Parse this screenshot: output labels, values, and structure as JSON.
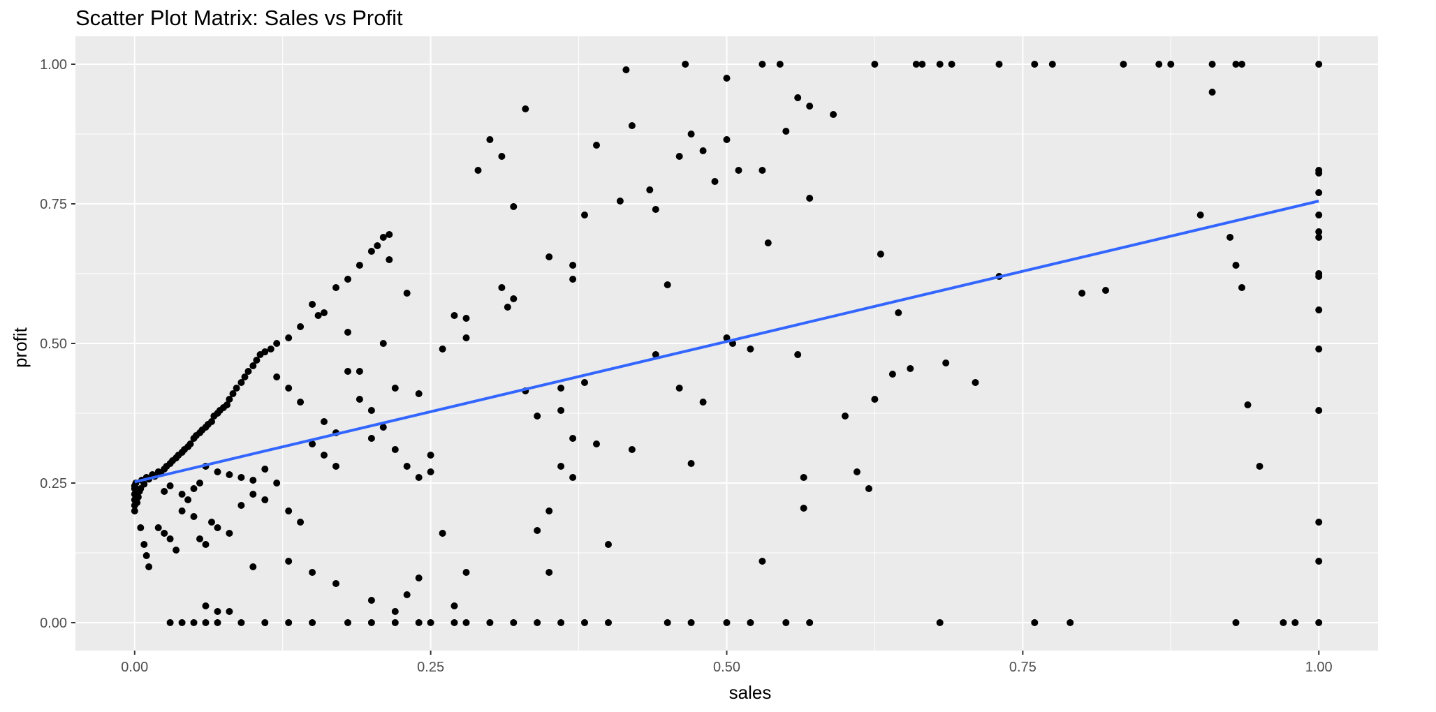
{
  "chart_data": {
    "type": "scatter",
    "title": "Scatter Plot Matrix: Sales vs Profit",
    "xlabel": "sales",
    "ylabel": "profit",
    "xlim": [
      -0.05,
      1.05
    ],
    "ylim": [
      -0.05,
      1.05
    ],
    "x_ticks": [
      0.0,
      0.25,
      0.5,
      0.75,
      1.0
    ],
    "x_tick_labels": [
      "0.00",
      "0.25",
      "0.50",
      "0.75",
      "1.00"
    ],
    "y_ticks": [
      0.0,
      0.25,
      0.5,
      0.75,
      1.0
    ],
    "y_tick_labels": [
      "0.00",
      "0.25",
      "0.50",
      "0.75",
      "1.00"
    ],
    "grid": true,
    "background_color": "#ebebeb",
    "point_color": "#000000",
    "trend_line": {
      "type": "linear",
      "color": "#3366ff",
      "x": [
        0.0,
        1.0
      ],
      "y": [
        0.252,
        0.755
      ]
    },
    "points": [
      [
        0.0,
        0.2
      ],
      [
        0.0,
        0.21
      ],
      [
        0.0,
        0.22
      ],
      [
        0.0,
        0.23
      ],
      [
        0.0,
        0.24
      ],
      [
        0.0,
        0.245
      ],
      [
        0.001,
        0.25
      ],
      [
        0.002,
        0.215
      ],
      [
        0.003,
        0.225
      ],
      [
        0.004,
        0.235
      ],
      [
        0.005,
        0.24
      ],
      [
        0.006,
        0.255
      ],
      [
        0.008,
        0.248
      ],
      [
        0.01,
        0.26
      ],
      [
        0.012,
        0.257
      ],
      [
        0.015,
        0.265
      ],
      [
        0.017,
        0.262
      ],
      [
        0.02,
        0.27
      ],
      [
        0.022,
        0.268
      ],
      [
        0.025,
        0.275
      ],
      [
        0.027,
        0.28
      ],
      [
        0.03,
        0.285
      ],
      [
        0.032,
        0.29
      ],
      [
        0.035,
        0.295
      ],
      [
        0.037,
        0.3
      ],
      [
        0.04,
        0.305
      ],
      [
        0.042,
        0.31
      ],
      [
        0.045,
        0.315
      ],
      [
        0.047,
        0.32
      ],
      [
        0.05,
        0.33
      ],
      [
        0.052,
        0.335
      ],
      [
        0.055,
        0.34
      ],
      [
        0.057,
        0.345
      ],
      [
        0.06,
        0.35
      ],
      [
        0.062,
        0.355
      ],
      [
        0.065,
        0.36
      ],
      [
        0.067,
        0.37
      ],
      [
        0.07,
        0.375
      ],
      [
        0.072,
        0.38
      ],
      [
        0.075,
        0.385
      ],
      [
        0.078,
        0.39
      ],
      [
        0.08,
        0.4
      ],
      [
        0.083,
        0.41
      ],
      [
        0.086,
        0.42
      ],
      [
        0.09,
        0.43
      ],
      [
        0.093,
        0.44
      ],
      [
        0.096,
        0.45
      ],
      [
        0.1,
        0.46
      ],
      [
        0.103,
        0.47
      ],
      [
        0.106,
        0.48
      ],
      [
        0.11,
        0.485
      ],
      [
        0.115,
        0.49
      ],
      [
        0.12,
        0.5
      ],
      [
        0.13,
        0.51
      ],
      [
        0.14,
        0.53
      ],
      [
        0.15,
        0.57
      ],
      [
        0.155,
        0.55
      ],
      [
        0.16,
        0.555
      ],
      [
        0.17,
        0.6
      ],
      [
        0.18,
        0.615
      ],
      [
        0.19,
        0.64
      ],
      [
        0.2,
        0.665
      ],
      [
        0.205,
        0.675
      ],
      [
        0.21,
        0.69
      ],
      [
        0.215,
        0.695
      ],
      [
        0.215,
        0.65
      ],
      [
        0.005,
        0.17
      ],
      [
        0.008,
        0.14
      ],
      [
        0.01,
        0.12
      ],
      [
        0.012,
        0.1
      ],
      [
        0.02,
        0.17
      ],
      [
        0.025,
        0.16
      ],
      [
        0.03,
        0.15
      ],
      [
        0.035,
        0.13
      ],
      [
        0.04,
        0.2
      ],
      [
        0.05,
        0.19
      ],
      [
        0.055,
        0.15
      ],
      [
        0.06,
        0.14
      ],
      [
        0.065,
        0.18
      ],
      [
        0.07,
        0.17
      ],
      [
        0.08,
        0.16
      ],
      [
        0.09,
        0.21
      ],
      [
        0.1,
        0.23
      ],
      [
        0.11,
        0.22
      ],
      [
        0.12,
        0.25
      ],
      [
        0.13,
        0.2
      ],
      [
        0.14,
        0.18
      ],
      [
        0.15,
        0.32
      ],
      [
        0.16,
        0.3
      ],
      [
        0.17,
        0.28
      ],
      [
        0.18,
        0.52
      ],
      [
        0.19,
        0.45
      ],
      [
        0.2,
        0.33
      ],
      [
        0.21,
        0.5
      ],
      [
        0.22,
        0.42
      ],
      [
        0.23,
        0.59
      ],
      [
        0.24,
        0.41
      ],
      [
        0.25,
        0.3
      ],
      [
        0.25,
        0.27
      ],
      [
        0.26,
        0.49
      ],
      [
        0.27,
        0.55
      ],
      [
        0.28,
        0.545
      ],
      [
        0.28,
        0.51
      ],
      [
        0.29,
        0.81
      ],
      [
        0.3,
        0.865
      ],
      [
        0.31,
        0.835
      ],
      [
        0.32,
        0.745
      ],
      [
        0.33,
        0.92
      ],
      [
        0.33,
        0.415
      ],
      [
        0.34,
        0.37
      ],
      [
        0.35,
        0.2
      ],
      [
        0.36,
        0.38
      ],
      [
        0.37,
        0.64
      ],
      [
        0.38,
        0.73
      ],
      [
        0.39,
        0.855
      ],
      [
        0.4,
        0.14
      ],
      [
        0.41,
        0.755
      ],
      [
        0.415,
        0.99
      ],
      [
        0.42,
        0.89
      ],
      [
        0.435,
        0.775
      ],
      [
        0.44,
        0.74
      ],
      [
        0.45,
        0.605
      ],
      [
        0.46,
        0.835
      ],
      [
        0.47,
        0.875
      ],
      [
        0.48,
        0.845
      ],
      [
        0.49,
        0.79
      ],
      [
        0.5,
        0.865
      ],
      [
        0.5,
        0.975
      ],
      [
        0.51,
        0.81
      ],
      [
        0.52,
        0.49
      ],
      [
        0.53,
        0.81
      ],
      [
        0.535,
        0.68
      ],
      [
        0.55,
        0.88
      ],
      [
        0.56,
        0.94
      ],
      [
        0.57,
        0.925
      ],
      [
        0.57,
        0.76
      ],
      [
        0.59,
        0.91
      ],
      [
        0.6,
        0.37
      ],
      [
        0.61,
        0.27
      ],
      [
        0.62,
        0.24
      ],
      [
        0.625,
        0.4
      ],
      [
        0.63,
        0.66
      ],
      [
        0.64,
        0.445
      ],
      [
        0.645,
        0.555
      ],
      [
        0.655,
        0.455
      ],
      [
        0.685,
        0.465
      ],
      [
        0.71,
        0.43
      ],
      [
        0.73,
        0.62
      ],
      [
        0.8,
        0.59
      ],
      [
        0.82,
        0.595
      ],
      [
        0.9,
        0.73
      ],
      [
        0.91,
        0.95
      ],
      [
        0.925,
        0.69
      ],
      [
        0.93,
        0.64
      ],
      [
        0.935,
        0.6
      ],
      [
        0.94,
        0.39
      ],
      [
        0.95,
        0.28
      ],
      [
        1.0,
        0.81
      ],
      [
        1.0,
        0.805
      ],
      [
        1.0,
        0.77
      ],
      [
        1.0,
        0.73
      ],
      [
        1.0,
        0.7
      ],
      [
        1.0,
        0.69
      ],
      [
        1.0,
        0.625
      ],
      [
        1.0,
        0.62
      ],
      [
        1.0,
        0.56
      ],
      [
        1.0,
        0.49
      ],
      [
        1.0,
        0.38
      ],
      [
        1.0,
        0.18
      ],
      [
        1.0,
        0.11
      ],
      [
        1.0,
        0.0
      ],
      [
        1.0,
        1.0
      ],
      [
        0.465,
        1.0
      ],
      [
        0.53,
        1.0
      ],
      [
        0.545,
        1.0
      ],
      [
        0.625,
        1.0
      ],
      [
        0.66,
        1.0
      ],
      [
        0.665,
        1.0
      ],
      [
        0.68,
        1.0
      ],
      [
        0.69,
        1.0
      ],
      [
        0.73,
        1.0
      ],
      [
        0.76,
        1.0
      ],
      [
        0.775,
        1.0
      ],
      [
        0.835,
        1.0
      ],
      [
        0.865,
        1.0
      ],
      [
        0.875,
        1.0
      ],
      [
        0.91,
        1.0
      ],
      [
        0.93,
        1.0
      ],
      [
        0.935,
        1.0
      ],
      [
        0.03,
        0.0
      ],
      [
        0.04,
        0.0
      ],
      [
        0.05,
        0.0
      ],
      [
        0.06,
        0.0
      ],
      [
        0.07,
        0.0
      ],
      [
        0.09,
        0.0
      ],
      [
        0.11,
        0.0
      ],
      [
        0.13,
        0.0
      ],
      [
        0.15,
        0.0
      ],
      [
        0.18,
        0.0
      ],
      [
        0.2,
        0.0
      ],
      [
        0.22,
        0.0
      ],
      [
        0.24,
        0.0
      ],
      [
        0.25,
        0.0
      ],
      [
        0.27,
        0.0
      ],
      [
        0.28,
        0.0
      ],
      [
        0.3,
        0.0
      ],
      [
        0.32,
        0.0
      ],
      [
        0.34,
        0.0
      ],
      [
        0.36,
        0.0
      ],
      [
        0.38,
        0.0
      ],
      [
        0.4,
        0.0
      ],
      [
        0.45,
        0.0
      ],
      [
        0.47,
        0.0
      ],
      [
        0.5,
        0.0
      ],
      [
        0.52,
        0.0
      ],
      [
        0.55,
        0.0
      ],
      [
        0.57,
        0.0
      ],
      [
        0.68,
        0.0
      ],
      [
        0.76,
        0.0
      ],
      [
        0.79,
        0.0
      ],
      [
        0.93,
        0.0
      ],
      [
        0.97,
        0.0
      ],
      [
        0.98,
        0.0
      ],
      [
        0.1,
        0.1
      ],
      [
        0.13,
        0.11
      ],
      [
        0.15,
        0.09
      ],
      [
        0.17,
        0.07
      ],
      [
        0.2,
        0.04
      ],
      [
        0.22,
        0.02
      ],
      [
        0.23,
        0.05
      ],
      [
        0.24,
        0.08
      ],
      [
        0.26,
        0.16
      ],
      [
        0.27,
        0.03
      ],
      [
        0.28,
        0.09
      ],
      [
        0.35,
        0.09
      ],
      [
        0.53,
        0.11
      ],
      [
        0.06,
        0.03
      ],
      [
        0.07,
        0.02
      ],
      [
        0.08,
        0.02
      ],
      [
        0.36,
        0.42
      ],
      [
        0.37,
        0.33
      ],
      [
        0.38,
        0.43
      ],
      [
        0.39,
        0.32
      ],
      [
        0.42,
        0.31
      ],
      [
        0.44,
        0.48
      ],
      [
        0.46,
        0.42
      ],
      [
        0.47,
        0.285
      ],
      [
        0.48,
        0.395
      ],
      [
        0.5,
        0.51
      ],
      [
        0.505,
        0.5
      ],
      [
        0.56,
        0.48
      ],
      [
        0.565,
        0.26
      ],
      [
        0.565,
        0.205
      ],
      [
        0.36,
        0.28
      ],
      [
        0.37,
        0.26
      ],
      [
        0.34,
        0.165
      ],
      [
        0.32,
        0.58
      ],
      [
        0.31,
        0.6
      ],
      [
        0.315,
        0.565
      ],
      [
        0.35,
        0.655
      ],
      [
        0.37,
        0.615
      ],
      [
        0.12,
        0.44
      ],
      [
        0.13,
        0.42
      ],
      [
        0.14,
        0.395
      ],
      [
        0.16,
        0.36
      ],
      [
        0.17,
        0.34
      ],
      [
        0.18,
        0.45
      ],
      [
        0.19,
        0.4
      ],
      [
        0.2,
        0.38
      ],
      [
        0.21,
        0.35
      ],
      [
        0.22,
        0.31
      ],
      [
        0.23,
        0.28
      ],
      [
        0.24,
        0.26
      ],
      [
        0.06,
        0.28
      ],
      [
        0.07,
        0.27
      ],
      [
        0.08,
        0.265
      ],
      [
        0.09,
        0.26
      ],
      [
        0.1,
        0.255
      ],
      [
        0.11,
        0.275
      ],
      [
        0.04,
        0.23
      ],
      [
        0.045,
        0.22
      ],
      [
        0.05,
        0.24
      ],
      [
        0.055,
        0.25
      ],
      [
        0.03,
        0.245
      ],
      [
        0.025,
        0.235
      ]
    ]
  }
}
